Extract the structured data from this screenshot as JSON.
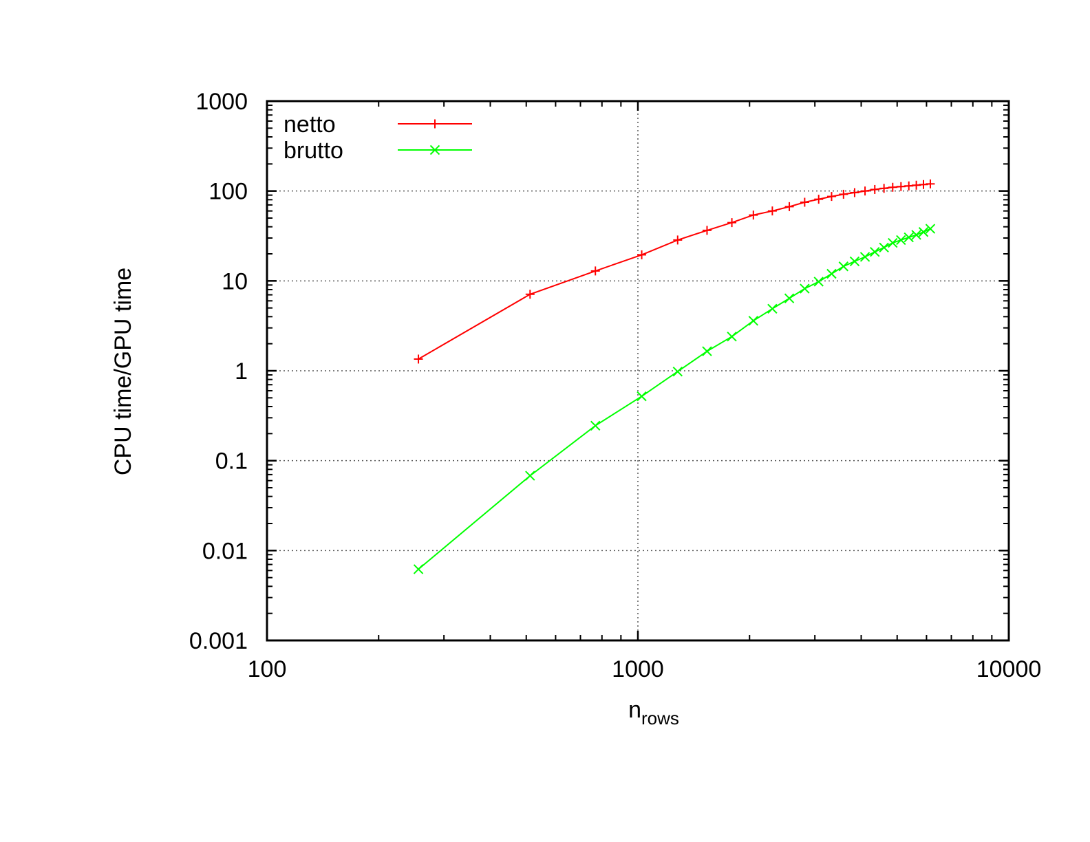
{
  "chart_data": {
    "type": "line",
    "xscale": "log",
    "yscale": "log",
    "xlim": [
      100,
      10000
    ],
    "ylim": [
      0.001,
      1000
    ],
    "x_ticks": [
      "100",
      "1000",
      "10000"
    ],
    "y_ticks": [
      "0.001",
      "0.01",
      "0.1",
      "1",
      "10",
      "100",
      "1000"
    ],
    "xlabel_main": "n",
    "xlabel_sub": "rows",
    "ylabel": "CPU time/GPU time",
    "grid": true,
    "legend_position": "top-left",
    "series": [
      {
        "name": "netto",
        "color": "#ff0000",
        "marker": "plus",
        "points": [
          [
            256,
            1.35
          ],
          [
            512,
            7.1
          ],
          [
            768,
            12.9
          ],
          [
            1024,
            19.5
          ],
          [
            1280,
            28.5
          ],
          [
            1536,
            36.5
          ],
          [
            1792,
            44.5
          ],
          [
            2048,
            54
          ],
          [
            2304,
            60
          ],
          [
            2560,
            67
          ],
          [
            2816,
            75
          ],
          [
            3072,
            81
          ],
          [
            3328,
            87
          ],
          [
            3584,
            92
          ],
          [
            3840,
            96
          ],
          [
            4096,
            100
          ],
          [
            4352,
            104
          ],
          [
            4608,
            107
          ],
          [
            4864,
            110
          ],
          [
            5120,
            112
          ],
          [
            5376,
            114
          ],
          [
            5632,
            116
          ],
          [
            5888,
            118
          ],
          [
            6144,
            120
          ]
        ]
      },
      {
        "name": "brutto",
        "color": "#00ff00",
        "marker": "cross",
        "points": [
          [
            256,
            0.0062
          ],
          [
            512,
            0.068
          ],
          [
            768,
            0.245
          ],
          [
            1024,
            0.52
          ],
          [
            1280,
            0.98
          ],
          [
            1536,
            1.65
          ],
          [
            1792,
            2.4
          ],
          [
            2048,
            3.6
          ],
          [
            2304,
            4.9
          ],
          [
            2560,
            6.4
          ],
          [
            2816,
            8.2
          ],
          [
            3072,
            9.8
          ],
          [
            3328,
            12
          ],
          [
            3584,
            14.5
          ],
          [
            3840,
            16.5
          ],
          [
            4096,
            18.5
          ],
          [
            4352,
            21
          ],
          [
            4608,
            23.5
          ],
          [
            4864,
            26.5
          ],
          [
            5120,
            28.5
          ],
          [
            5376,
            30.5
          ],
          [
            5632,
            32.5
          ],
          [
            5888,
            35
          ],
          [
            6144,
            38
          ]
        ]
      }
    ]
  }
}
